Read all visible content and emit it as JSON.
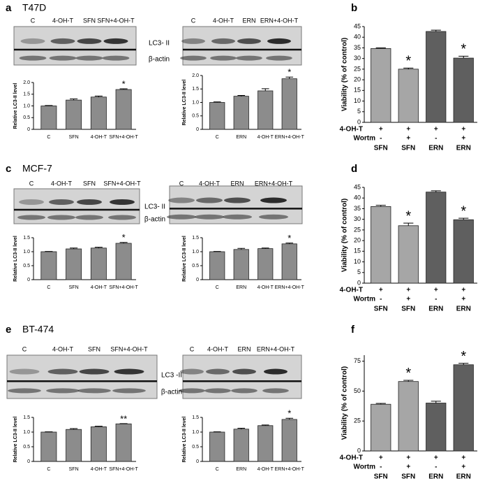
{
  "rows": [
    {
      "left_letter": "a",
      "cell_line": "T47D",
      "right_letter": "b",
      "band_labels": [
        "LC3- II",
        "β-actin"
      ],
      "blots": [
        {
          "lanes": [
            "C",
            "4-OH-T",
            "SFN",
            "SFN+4-OH-T"
          ]
        },
        {
          "lanes": [
            "C",
            "4-OH-T",
            "ERN",
            "ERN+4-OH-T"
          ]
        }
      ]
    },
    {
      "left_letter": "c",
      "cell_line": "MCF-7",
      "right_letter": "d",
      "band_labels": [
        "LC3- II",
        "β-actin"
      ],
      "blots": [
        {
          "lanes": [
            "C",
            "4-OH-T",
            "SFN",
            "SFN+4-OH-T"
          ]
        },
        {
          "lanes": [
            "C",
            "4-OH-T",
            "ERN",
            "ERN+4-OH-T"
          ]
        }
      ]
    },
    {
      "left_letter": "e",
      "cell_line": "BT-474",
      "right_letter": "f",
      "band_labels": [
        "LC3 -II",
        "β-actin"
      ],
      "blots": [
        {
          "lanes": [
            "C",
            "4-OH-T",
            "SFN",
            "SFN+4-OH-T"
          ]
        },
        {
          "lanes": [
            "C",
            "4-OH-T",
            "ERN",
            "ERN+4-OH-T"
          ]
        }
      ]
    }
  ],
  "chart_data": [
    {
      "type": "bar",
      "ylabel": "Relative LC3-II level",
      "categories": [
        "C",
        "SFN",
        "4-OH-T",
        "SFN+4-OH-T"
      ],
      "values": [
        1.0,
        1.25,
        1.38,
        1.7
      ],
      "errors": [
        0.02,
        0.05,
        0.04,
        0.03
      ],
      "annotations": [
        null,
        null,
        null,
        "*"
      ],
      "color": "#8c8c8c",
      "ylim": [
        0,
        2
      ],
      "yticks": [
        0,
        0.5,
        {
          "value": 1,
          "label": "1.0"
        },
        1.5,
        {
          "value": 2,
          "label": "2.0"
        }
      ]
    },
    {
      "type": "bar",
      "ylabel": "Relative LC3-II level",
      "categories": [
        "C",
        "ERN",
        "4-OH-T",
        "ERN+4-OH-T"
      ],
      "values": [
        1.0,
        1.23,
        1.43,
        1.88
      ],
      "errors": [
        0.02,
        0.03,
        0.08,
        0.06
      ],
      "annotations": [
        null,
        null,
        null,
        "*"
      ],
      "color": "#8c8c8c",
      "ylim": [
        0,
        2
      ],
      "yticks": [
        0,
        0.5,
        {
          "value": 1,
          "label": "1.0"
        },
        1.5,
        {
          "value": 2,
          "label": "2.0"
        }
      ]
    },
    {
      "type": "viability",
      "ylabel": "Viability (% of control)",
      "categories": [
        "SFN",
        "SFN",
        "ERN",
        "ERN"
      ],
      "row_labels": [
        "4-OH-T",
        "Wortm"
      ],
      "treatments": [
        [
          "+",
          "+",
          "+",
          "+"
        ],
        [
          "-",
          "+",
          "-",
          "+"
        ]
      ],
      "values": [
        34.7,
        25,
        42.7,
        30.2
      ],
      "errors": [
        0.3,
        0.5,
        0.6,
        0.9
      ],
      "annotations": [
        null,
        "*",
        null,
        "*"
      ],
      "colors": [
        "#a6a6a6",
        "#a6a6a6",
        "#5f5f5f",
        "#5f5f5f"
      ],
      "ylim": [
        0,
        45
      ],
      "yticks": [
        0,
        5,
        10,
        15,
        20,
        25,
        30,
        35,
        40,
        45
      ]
    },
    {
      "type": "bar",
      "ylabel": "Relative LC3-II level",
      "categories": [
        "C",
        "SFN",
        "4-OH-T",
        "SFN+4-OH-T"
      ],
      "values": [
        1.0,
        1.1,
        1.13,
        1.3
      ],
      "errors": [
        0.01,
        0.03,
        0.03,
        0.03
      ],
      "annotations": [
        null,
        null,
        null,
        "*"
      ],
      "color": "#8c8c8c",
      "ylim": [
        0,
        1.5
      ],
      "yticks": [
        0,
        0.5,
        {
          "value": 1,
          "label": "1.0"
        },
        1.5
      ]
    },
    {
      "type": "bar",
      "ylabel": "Relative LC3-II level",
      "categories": [
        "C",
        "ERN",
        "4-OH-T",
        "ERN+4-OH-T"
      ],
      "values": [
        1.0,
        1.08,
        1.11,
        1.28
      ],
      "errors": [
        0.01,
        0.04,
        0.02,
        0.03
      ],
      "annotations": [
        null,
        null,
        null,
        "*"
      ],
      "color": "#8c8c8c",
      "ylim": [
        0,
        1.5
      ],
      "yticks": [
        0,
        0.5,
        {
          "value": 1,
          "label": "1.0"
        },
        1.5
      ]
    },
    {
      "type": "viability",
      "ylabel": "Viability (% of control)",
      "categories": [
        "SFN",
        "SFN",
        "ERN",
        "ERN"
      ],
      "row_labels": [
        "4-OH-T",
        "Wortm"
      ],
      "treatments": [
        [
          "+",
          "+",
          "+",
          "+"
        ],
        [
          "-",
          "+",
          "-",
          "+"
        ]
      ],
      "values": [
        36,
        27,
        42.8,
        29.8
      ],
      "errors": [
        0.6,
        1.2,
        0.6,
        0.7
      ],
      "annotations": [
        null,
        "*",
        null,
        "*"
      ],
      "colors": [
        "#a6a6a6",
        "#a6a6a6",
        "#5f5f5f",
        "#5f5f5f"
      ],
      "ylim": [
        0,
        45
      ],
      "yticks": [
        0,
        5,
        10,
        15,
        20,
        25,
        30,
        35,
        40,
        45
      ]
    },
    {
      "type": "bar",
      "ylabel": "Relative LC3-II level",
      "categories": [
        "C",
        "SFN",
        "4-OH-T",
        "SFN+4-OH-T"
      ],
      "values": [
        1.0,
        1.09,
        1.18,
        1.28
      ],
      "errors": [
        0.01,
        0.03,
        0.02,
        0.01
      ],
      "annotations": [
        null,
        null,
        null,
        "**"
      ],
      "color": "#8c8c8c",
      "ylim": [
        0,
        1.5
      ],
      "yticks": [
        0,
        0.5,
        {
          "value": 1,
          "label": "1.0"
        },
        1.5
      ]
    },
    {
      "type": "bar",
      "ylabel": "Relative LC3-II level",
      "categories": [
        "C",
        "ERN",
        "4-OH-T",
        "ERN+4-OH-T"
      ],
      "values": [
        1.0,
        1.1,
        1.22,
        1.43
      ],
      "errors": [
        0.01,
        0.03,
        0.02,
        0.04
      ],
      "annotations": [
        null,
        null,
        null,
        "*"
      ],
      "color": "#8c8c8c",
      "ylim": [
        0,
        1.5
      ],
      "yticks": [
        0,
        0.5,
        {
          "value": 1,
          "label": "1.0"
        },
        1.5
      ]
    },
    {
      "type": "viability",
      "ylabel": "Viability (% of control)",
      "categories": [
        "SFN",
        "SFN",
        "ERN",
        "ERN"
      ],
      "row_labels": [
        "4-OH-T",
        "Wortm"
      ],
      "treatments": [
        [
          "+",
          "+",
          "+",
          "+"
        ],
        [
          "-",
          "+",
          "-",
          "+"
        ]
      ],
      "values": [
        39,
        58,
        40,
        72
      ],
      "errors": [
        0.7,
        1,
        1.5,
        1.2
      ],
      "annotations": [
        null,
        "*",
        null,
        "*"
      ],
      "colors": [
        "#a6a6a6",
        "#a6a6a6",
        "#5f5f5f",
        "#5f5f5f"
      ],
      "ylim": [
        0,
        80
      ],
      "yticks": [
        0,
        25,
        50,
        75
      ]
    }
  ]
}
